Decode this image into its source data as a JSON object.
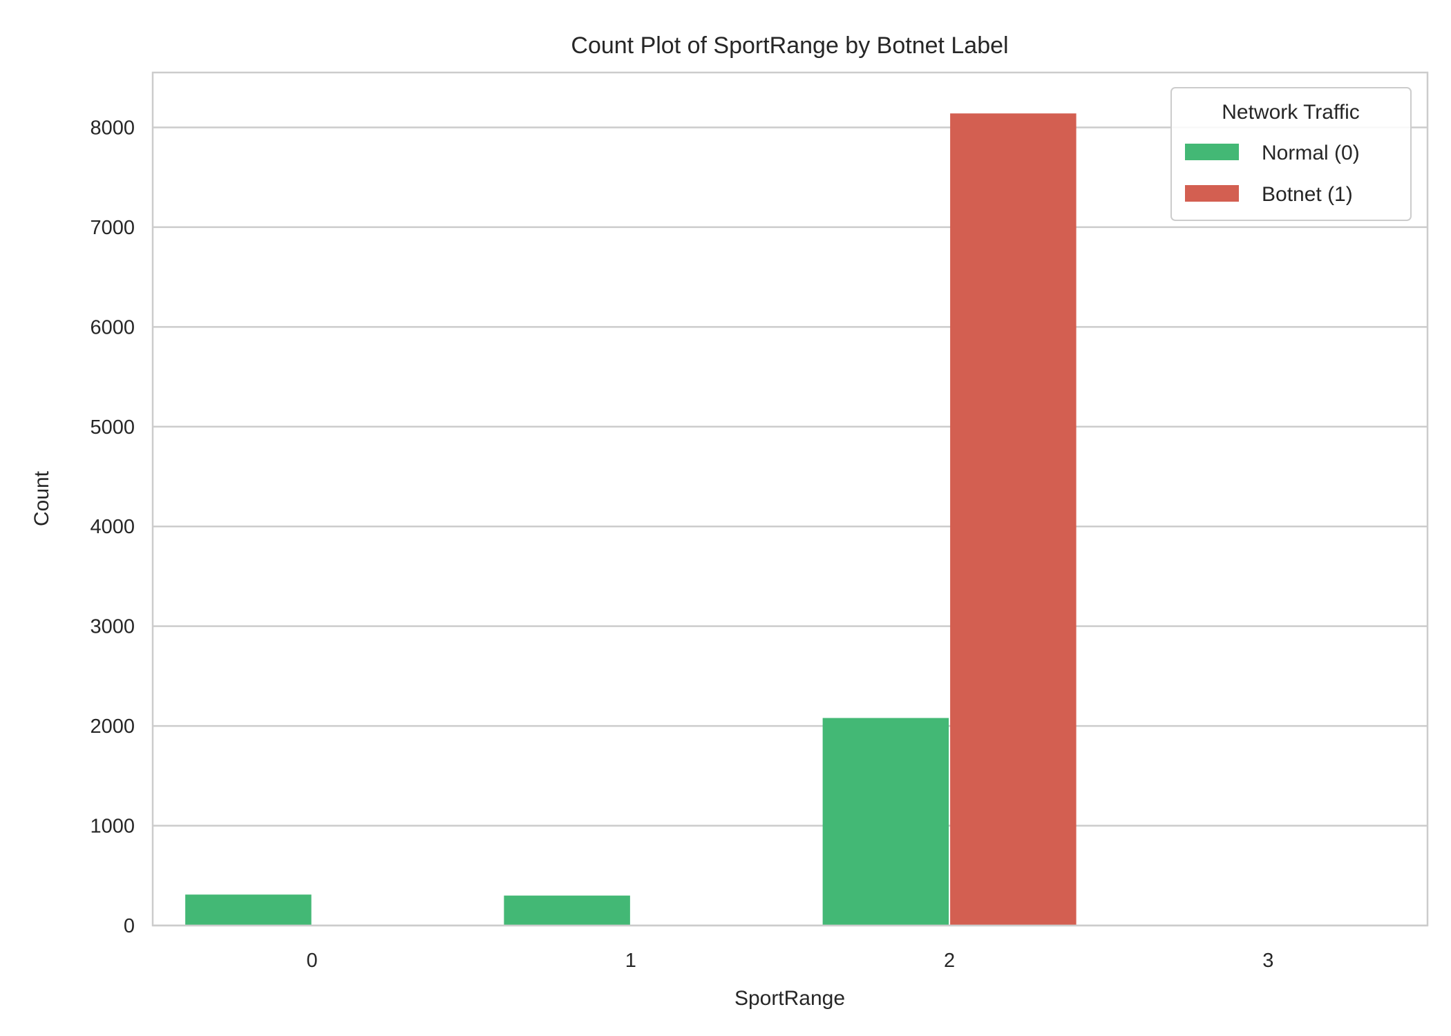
{
  "chart_data": {
    "type": "bar",
    "title": "Count Plot of SportRange by Botnet Label",
    "xlabel": "SportRange",
    "ylabel": "Count",
    "categories": [
      "0",
      "1",
      "2",
      "3"
    ],
    "series": [
      {
        "name": "Normal (0)",
        "values": [
          310,
          300,
          2080,
          0
        ],
        "color": "#43b875"
      },
      {
        "name": "Botnet (1)",
        "values": [
          0,
          0,
          8140,
          0
        ],
        "color": "#d35f51"
      }
    ],
    "ylim": [
      0,
      8550
    ],
    "yticks": [
      0,
      1000,
      2000,
      3000,
      4000,
      5000,
      6000,
      7000,
      8000
    ],
    "grid": "horizontal",
    "legend": {
      "title": "Network Traffic",
      "placement": "top-right"
    }
  }
}
